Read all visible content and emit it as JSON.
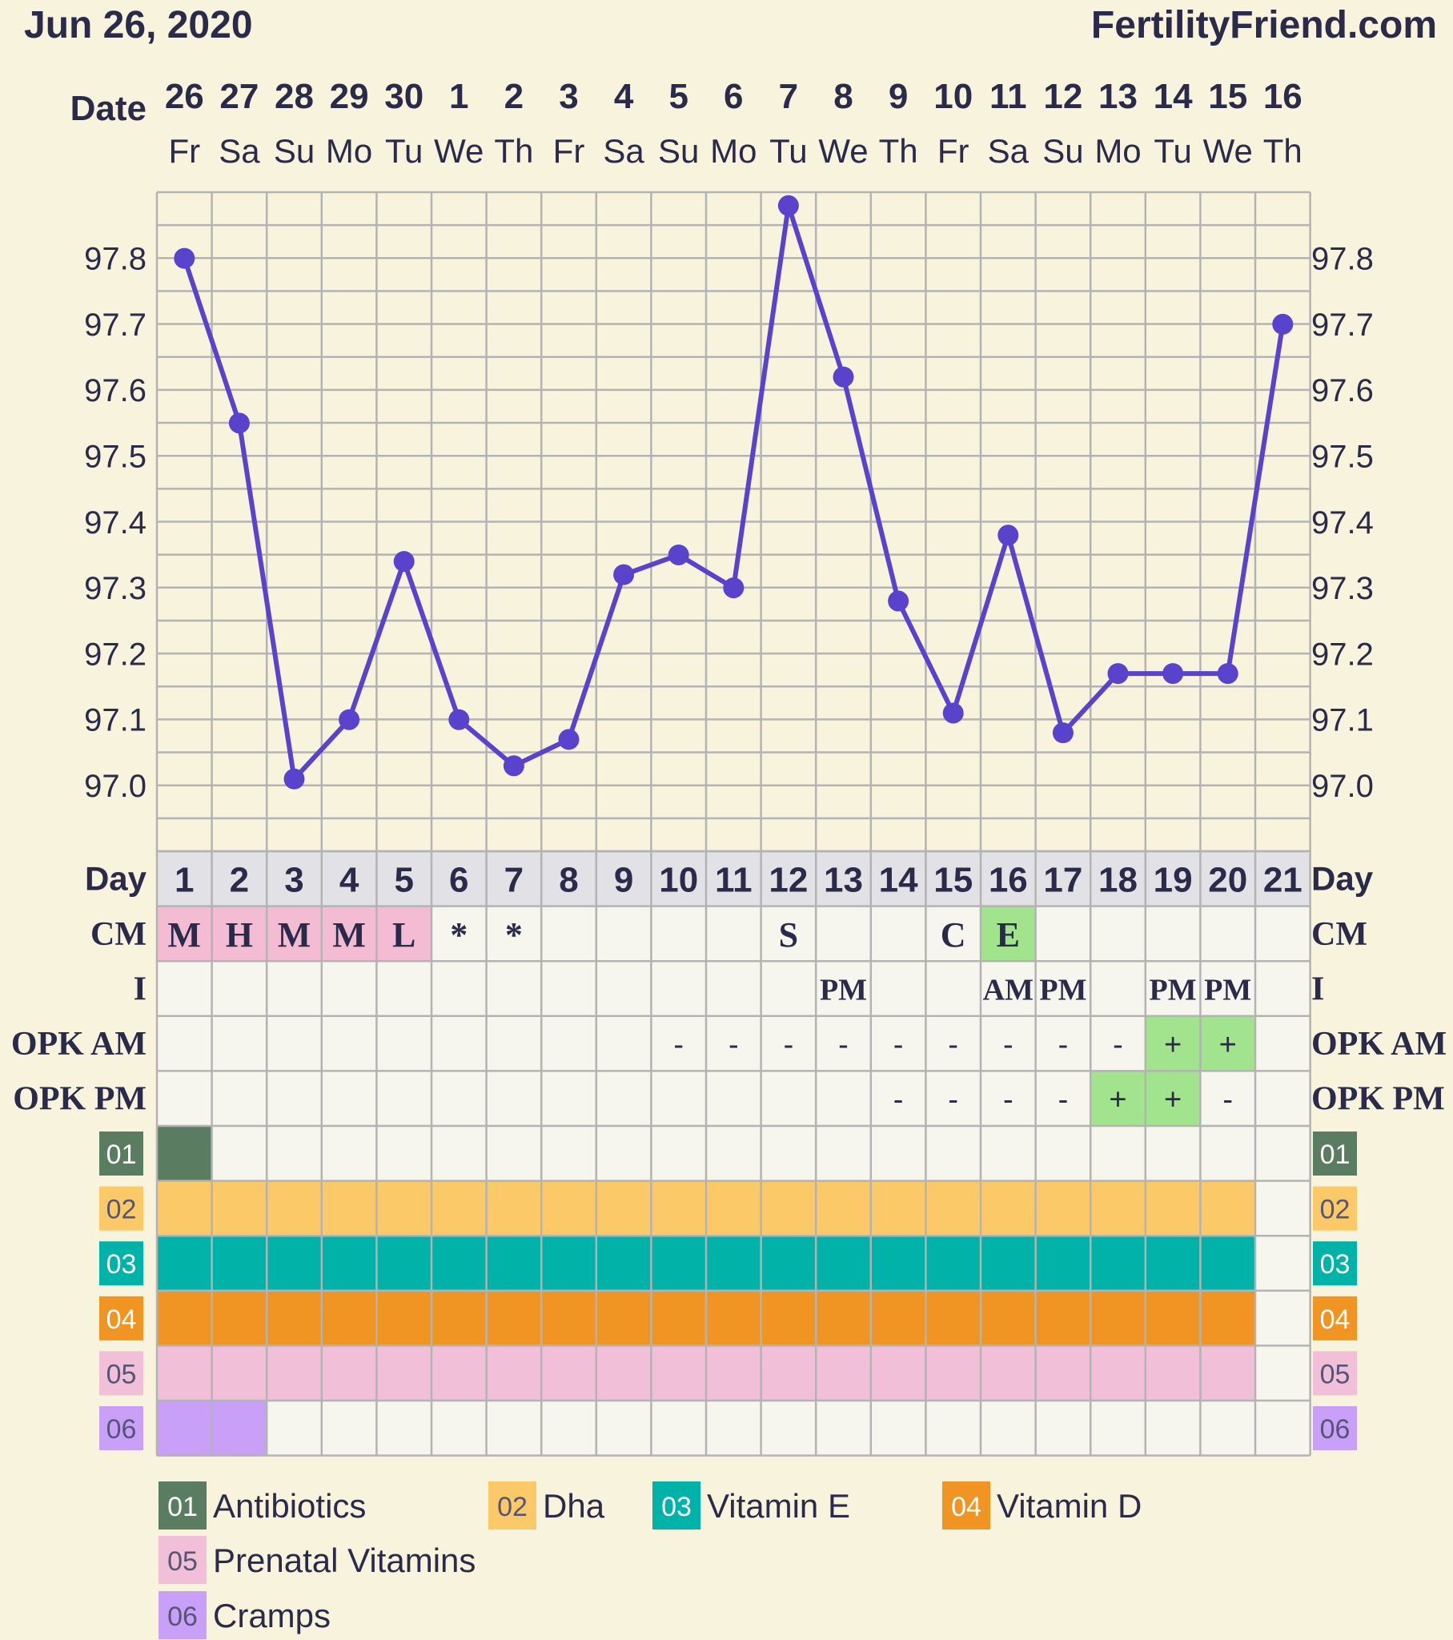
{
  "header": {
    "date": "Jun 26, 2020",
    "site": "FertilityFriend.com"
  },
  "labels": {
    "date": "Date",
    "day": "Day",
    "cm": "CM",
    "i": "I",
    "opk_am": "OPK AM",
    "opk_pm": "OPK PM",
    "codes": [
      "01",
      "02",
      "03",
      "04",
      "05",
      "06"
    ]
  },
  "colors": {
    "background": "#f8f3dc",
    "line": "#5a43cc",
    "grid": "#b3b3b3",
    "plain_cell": "#f6f5ee",
    "day_row": "#e2e2e6",
    "cm_fertile": "#f3bcd3",
    "green_cell": "#a2e38e",
    "code_01": "#5a7d62",
    "code_02": "#fcc969",
    "code_03": "#00b2a8",
    "code_04": "#f09524",
    "code_05": "#f2bfd8",
    "code_06": "#c9a0f8"
  },
  "chart_data": {
    "type": "line",
    "title": "",
    "ylim": [
      96.9,
      97.9
    ],
    "y_ticks": [
      "97.0",
      "97.1",
      "97.2",
      "97.3",
      "97.4",
      "97.5",
      "97.6",
      "97.7",
      "97.8"
    ],
    "dates": [
      "26",
      "27",
      "28",
      "29",
      "30",
      "1",
      "2",
      "3",
      "4",
      "5",
      "6",
      "7",
      "8",
      "9",
      "10",
      "11",
      "12",
      "13",
      "14",
      "15",
      "16"
    ],
    "weekdays": [
      "Fr",
      "Sa",
      "Su",
      "Mo",
      "Tu",
      "We",
      "Th",
      "Fr",
      "Sa",
      "Su",
      "Mo",
      "Tu",
      "We",
      "Th",
      "Fr",
      "Sa",
      "Su",
      "Mo",
      "Tu",
      "We",
      "Th"
    ],
    "cycle_days": [
      "1",
      "2",
      "3",
      "4",
      "5",
      "6",
      "7",
      "8",
      "9",
      "10",
      "11",
      "12",
      "13",
      "14",
      "15",
      "16",
      "17",
      "18",
      "19",
      "20",
      "21"
    ],
    "series": [
      {
        "values": [
          97.8,
          97.55,
          97.01,
          97.1,
          97.34,
          97.1,
          97.03,
          97.07,
          97.32,
          97.35,
          97.3,
          97.88,
          97.62,
          97.28,
          97.11,
          97.38,
          97.08,
          97.17,
          97.17,
          97.17,
          97.7
        ]
      }
    ],
    "cm": [
      "M",
      "H",
      "M",
      "M",
      "L",
      "*",
      "*",
      "",
      "",
      "",
      "",
      "S",
      "",
      "",
      "C",
      "E",
      "",
      "",
      "",
      "",
      ""
    ],
    "cm_style": [
      "pink",
      "pink",
      "pink",
      "pink",
      "pink",
      "",
      "",
      "",
      "",
      "",
      "",
      "",
      "",
      "",
      "",
      "green",
      "",
      "",
      "",
      "",
      ""
    ],
    "intercourse": [
      "",
      "",
      "",
      "",
      "",
      "",
      "",
      "",
      "",
      "",
      "",
      "",
      "PM",
      "",
      "",
      "AM",
      "PM",
      "",
      "PM",
      "PM",
      ""
    ],
    "opk_am": [
      "",
      "",
      "",
      "",
      "",
      "",
      "",
      "",
      "",
      "-",
      "-",
      "-",
      "-",
      "-",
      "-",
      "-",
      "-",
      "-",
      "+",
      "+",
      ""
    ],
    "opk_am_pos": [
      false,
      false,
      false,
      false,
      false,
      false,
      false,
      false,
      false,
      false,
      false,
      false,
      false,
      false,
      false,
      false,
      false,
      false,
      true,
      true,
      false
    ],
    "opk_pm": [
      "",
      "",
      "",
      "",
      "",
      "",
      "",
      "",
      "",
      "",
      "",
      "",
      "",
      "-",
      "-",
      "-",
      "-",
      "+",
      "+",
      "-",
      ""
    ],
    "opk_pm_pos": [
      false,
      false,
      false,
      false,
      false,
      false,
      false,
      false,
      false,
      false,
      false,
      false,
      false,
      false,
      false,
      false,
      false,
      true,
      true,
      false,
      false
    ],
    "codes_days": {
      "01": [
        1,
        1
      ],
      "02": [
        1,
        20
      ],
      "03": [
        1,
        20
      ],
      "04": [
        1,
        20
      ],
      "05": [
        1,
        20
      ],
      "06": [
        1,
        2
      ]
    },
    "legend": [
      {
        "code": "01",
        "label": "Antibiotics",
        "color": "#5a7d62"
      },
      {
        "code": "02",
        "label": "Dha",
        "color": "#fcc969"
      },
      {
        "code": "03",
        "label": "Vitamin E",
        "color": "#00b2a8"
      },
      {
        "code": "04",
        "label": "Vitamin D",
        "color": "#f09524"
      },
      {
        "code": "05",
        "label": "Prenatal Vitamins",
        "color": "#f2bfd8"
      },
      {
        "code": "06",
        "label": "Cramps",
        "color": "#c9a0f8"
      }
    ]
  }
}
